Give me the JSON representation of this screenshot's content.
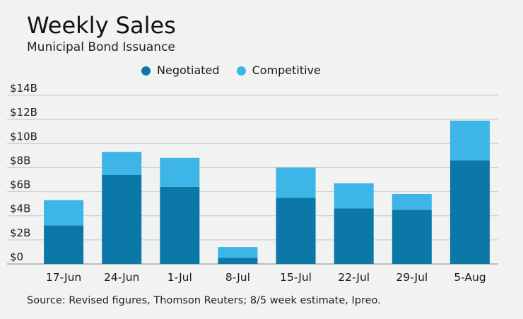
{
  "chart_data": {
    "type": "bar",
    "stacked": true,
    "title": "Weekly Sales",
    "subtitle": "Municipal Bond Issuance",
    "categories": [
      "17-Jun",
      "24-Jun",
      "1-Jul",
      "8-Jul",
      "15-Jul",
      "22-Jul",
      "29-Jul",
      "5-Aug"
    ],
    "series": [
      {
        "name": "Negotiated",
        "color": "#0b78a7",
        "values": [
          3.2,
          7.4,
          6.4,
          0.5,
          5.5,
          4.6,
          4.5,
          8.6
        ]
      },
      {
        "name": "Competitive",
        "color": "#3db5e6",
        "values": [
          2.1,
          1.9,
          2.4,
          0.9,
          2.5,
          2.1,
          1.3,
          3.3
        ]
      }
    ],
    "ylim": [
      0,
      14
    ],
    "yticks": [
      0,
      2,
      4,
      6,
      8,
      10,
      12,
      14
    ],
    "ytick_labels": [
      "$0",
      "$2B",
      "$4B",
      "$6B",
      "$8B",
      "$10B",
      "$12B",
      "$14B"
    ],
    "grid": true,
    "legend_position": "top",
    "source": "Source: Revised figures, Thomson Reuters; 8/5 week estimate, Ipreo."
  }
}
